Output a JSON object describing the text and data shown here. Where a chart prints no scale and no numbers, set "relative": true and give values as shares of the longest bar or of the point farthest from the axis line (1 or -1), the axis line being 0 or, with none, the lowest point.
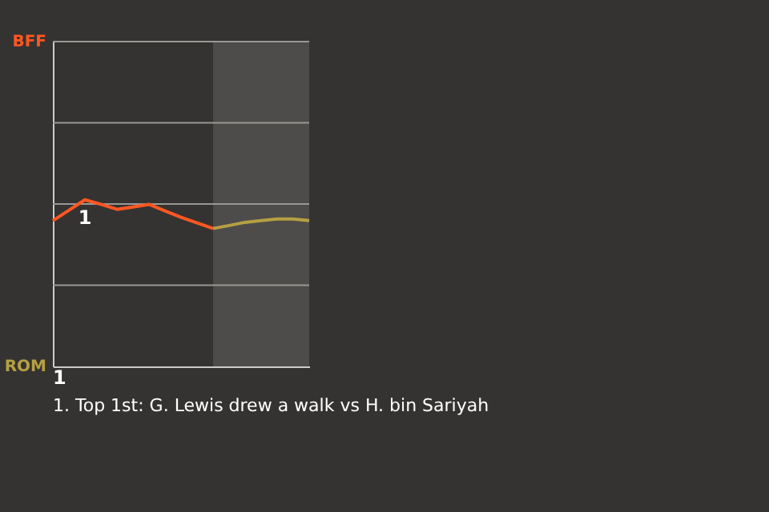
{
  "chart_data": {
    "type": "line",
    "relative": true,
    "categories": [
      null,
      null,
      null,
      null,
      null,
      null,
      null,
      null,
      null,
      null,
      null,
      null,
      null,
      null,
      null,
      null,
      null
    ],
    "series": [
      {
        "color": "#ff5722",
        "values": [
          0.875,
          0.9375,
          1,
          0.973,
          0.943,
          0.957,
          0.973,
          0.934,
          0.895,
          0.861,
          0.828,
          null,
          null,
          null,
          null,
          null,
          null
        ]
      },
      {
        "color": "#b5a042",
        "values": [
          null,
          null,
          null,
          null,
          null,
          null,
          null,
          null,
          null,
          null,
          0.828,
          0.846,
          0.865,
          0.875,
          0.885,
          0.885,
          0.875
        ]
      }
    ],
    "marker": "none",
    "ref_lines": [
      {
        "axis": "y",
        "value": 0.4875,
        "label": null
      },
      {
        "axis": "y",
        "value": 0.975,
        "label": null
      },
      {
        "axis": "y",
        "value": 1.4625,
        "label": null
      },
      {
        "axis": "y",
        "value": 1.95,
        "label": null
      }
    ],
    "annotations": [
      {
        "text": "1",
        "y": 1
      },
      "BFF",
      "ROM",
      "1",
      "1. Top 1st: G. Lewis drew a walk vs H. bin Sariyah"
    ]
  }
}
